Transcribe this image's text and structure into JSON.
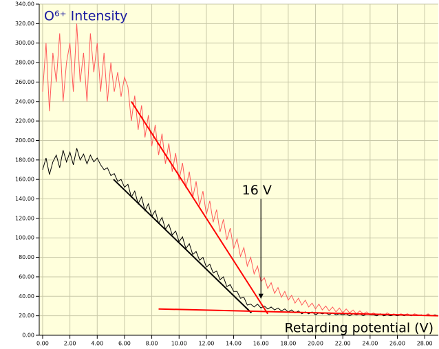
{
  "chart_data": {
    "type": "line",
    "title": "O⁶⁺ Intensity",
    "x_label": "Retarding potential (V)",
    "xlim": [
      -0.25,
      29
    ],
    "ylim": [
      0,
      340
    ],
    "grid": true,
    "xticks": [
      {
        "value": 0,
        "label": "0.00"
      },
      {
        "value": 2,
        "label": "2.00"
      },
      {
        "value": 4,
        "label": "4.00"
      },
      {
        "value": 6,
        "label": "6.00"
      },
      {
        "value": 8,
        "label": "8.00"
      },
      {
        "value": 10,
        "label": "10.00"
      },
      {
        "value": 12,
        "label": "12.00"
      },
      {
        "value": 14,
        "label": "14.00"
      },
      {
        "value": 16,
        "label": "16.00"
      },
      {
        "value": 18,
        "label": "18.00"
      },
      {
        "value": 20,
        "label": "20.00"
      },
      {
        "value": 22,
        "label": "22.00"
      },
      {
        "value": 24,
        "label": "24.00"
      },
      {
        "value": 26,
        "label": "26.00"
      },
      {
        "value": 28,
        "label": "28.00"
      }
    ],
    "yticks": [
      {
        "value": 0,
        "label": "0.00"
      },
      {
        "value": 20,
        "label": "20.00"
      },
      {
        "value": 40,
        "label": "40.00"
      },
      {
        "value": 60,
        "label": "60.00"
      },
      {
        "value": 80,
        "label": "80.00"
      },
      {
        "value": 100,
        "label": "100.00"
      },
      {
        "value": 120,
        "label": "120.00"
      },
      {
        "value": 140,
        "label": "140.00"
      },
      {
        "value": 160,
        "label": "160.00"
      },
      {
        "value": 180,
        "label": "180.00"
      },
      {
        "value": 200,
        "label": "200.00"
      },
      {
        "value": 220,
        "label": "220.00"
      },
      {
        "value": 240,
        "label": "240.00"
      },
      {
        "value": 260,
        "label": "260.00"
      },
      {
        "value": 280,
        "label": "280.00"
      },
      {
        "value": 300,
        "label": "300.00"
      },
      {
        "value": 320,
        "label": "320.00"
      },
      {
        "value": 340,
        "label": "340.00"
      }
    ],
    "x": [
      0,
      0.25,
      0.5,
      0.75,
      1,
      1.25,
      1.5,
      1.75,
      2,
      2.25,
      2.5,
      2.75,
      3,
      3.25,
      3.5,
      3.75,
      4,
      4.25,
      4.5,
      4.75,
      5,
      5.25,
      5.5,
      5.75,
      6,
      6.25,
      6.5,
      6.75,
      7,
      7.25,
      7.5,
      7.75,
      8,
      8.25,
      8.5,
      8.75,
      9,
      9.25,
      9.5,
      9.75,
      10,
      10.25,
      10.5,
      10.75,
      11,
      11.25,
      11.5,
      11.75,
      12,
      12.25,
      12.5,
      12.75,
      13,
      13.25,
      13.5,
      13.75,
      14,
      14.25,
      14.5,
      14.75,
      15,
      15.25,
      15.5,
      15.75,
      16,
      16.25,
      16.5,
      16.75,
      17,
      17.25,
      17.5,
      17.75,
      18,
      18.25,
      18.5,
      18.75,
      19,
      19.25,
      19.5,
      19.75,
      20,
      20.25,
      20.5,
      20.75,
      21,
      21.25,
      21.5,
      21.75,
      22,
      22.25,
      22.5,
      22.75,
      23,
      23.25,
      23.5,
      23.75,
      24,
      24.25,
      24.5,
      24.75,
      25,
      25.25,
      25.5,
      25.75,
      26,
      26.25,
      26.5,
      26.75,
      27,
      27.25,
      27.5,
      27.75,
      28,
      28.25,
      28.5,
      28.75,
      29
    ],
    "series": [
      {
        "color": "#ff5a5a",
        "values": [
          250,
          300,
          230,
          290,
          260,
          310,
          240,
          280,
          300,
          250,
          320,
          260,
          290,
          240,
          310,
          270,
          300,
          250,
          290,
          240,
          280,
          250,
          270,
          245,
          265,
          255,
          220,
          246,
          211,
          236,
          203,
          226,
          194,
          216,
          185,
          207,
          176,
          197,
          168,
          187,
          159,
          177,
          151,
          168,
          141,
          158,
          133,
          148,
          124,
          138,
          116,
          129,
          106,
          119,
          98,
          110,
          89,
          99,
          81,
          90,
          71,
          80,
          63,
          71,
          55,
          59,
          48,
          54,
          43,
          49,
          39,
          45,
          36,
          41,
          33,
          38,
          31,
          36,
          29,
          33,
          27,
          32,
          26,
          30,
          25,
          29,
          24,
          28,
          23,
          27,
          23,
          26,
          22,
          25,
          22,
          24,
          21,
          23,
          21,
          22,
          20,
          23,
          21,
          22,
          20,
          22,
          21,
          22,
          20,
          22,
          21,
          21,
          20,
          22,
          20,
          21,
          20
        ]
      },
      {
        "color": "#000000",
        "values": [
          170,
          182,
          165,
          178,
          185,
          172,
          190,
          178,
          188,
          175,
          192,
          180,
          186,
          176,
          185,
          178,
          182,
          175,
          170,
          172,
          164,
          166,
          158,
          160,
          152,
          155,
          142,
          148,
          135,
          142,
          128,
          135,
          122,
          128,
          115,
          121,
          109,
          114,
          103,
          107,
          96,
          101,
          89,
          94,
          83,
          86,
          77,
          80,
          70,
          73,
          64,
          66,
          57,
          60,
          50,
          52,
          45,
          45,
          38,
          39,
          31,
          32,
          29,
          32,
          28,
          30,
          27,
          29,
          26,
          28,
          25,
          27,
          24,
          26,
          23,
          25,
          22,
          24,
          22,
          24,
          21,
          23,
          22,
          23,
          21,
          23,
          21,
          22,
          21,
          22,
          20,
          22,
          21,
          22,
          20,
          22,
          21,
          21,
          20,
          22,
          20,
          21,
          20,
          21,
          20,
          21,
          20,
          21,
          20,
          21,
          20,
          21,
          20,
          21,
          20,
          21,
          20
        ]
      }
    ],
    "fit_lines": [
      {
        "color": "#ff0000",
        "x": [
          6.5,
          16.5
        ],
        "y": [
          240,
          22
        ]
      },
      {
        "color": "#000000",
        "x": [
          5.2,
          15.3
        ],
        "y": [
          160,
          23
        ]
      },
      {
        "color": "#ff0000",
        "x": [
          8.5,
          29
        ],
        "y": [
          27,
          20
        ]
      }
    ],
    "annotation": {
      "text": "16 V",
      "x": 16,
      "y_from": 140,
      "y_to": 38
    }
  }
}
